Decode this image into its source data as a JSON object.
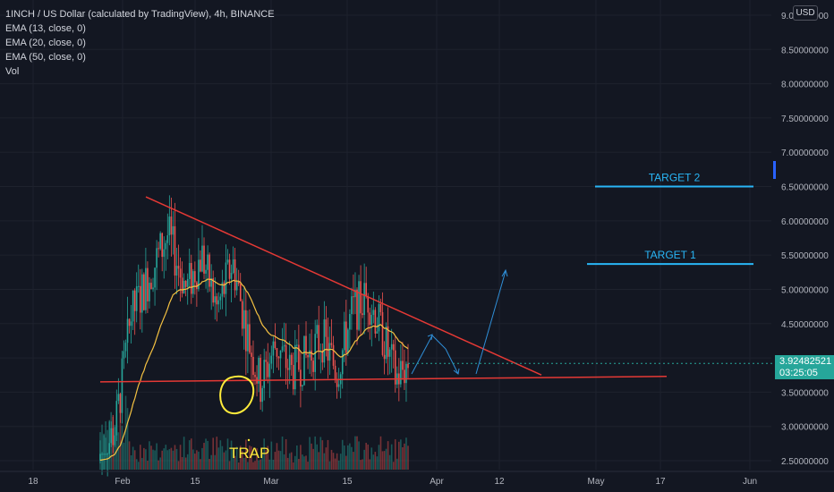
{
  "header": {
    "symbol_line": "1INCH / US Dollar (calculated by TradingView), 4h, BINANCE",
    "indicators": [
      "EMA (13, close, 0)",
      "EMA (20, close, 0)",
      "EMA (50, close, 0)",
      "Vol"
    ]
  },
  "currency_button": "USD",
  "current_price": {
    "value": "3.92482521",
    "countdown": "03:25:05"
  },
  "colors": {
    "background": "#131722",
    "grid": "#1e222d",
    "up_candle": "#26a69a",
    "down_candle": "#ef5350",
    "ema": "#f5c242",
    "trendline": "#e53935",
    "target": "#29b6f6",
    "arrow": "#2f8fd8",
    "annotation": "#ffeb3b"
  },
  "chart_data": {
    "type": "candlestick",
    "title": "1INCH / US Dollar (calculated by TradingView), 4h, BINANCE",
    "y_axis": {
      "range": [
        2.4,
        9.1
      ],
      "ticks": [
        "2.50000000",
        "3.00000000",
        "3.50000000",
        "4.00000000",
        "4.50000000",
        "5.00000000",
        "5.50000000",
        "6.00000000",
        "6.50000000",
        "7.00000000",
        "7.50000000",
        "8.00000000",
        "8.50000000",
        "9.00000000"
      ]
    },
    "x_axis": {
      "ticks": [
        "18",
        "Feb",
        "15",
        "Mar",
        "15",
        "Apr",
        "12",
        "May",
        "17",
        "Jun"
      ]
    },
    "price_path": [
      {
        "t": 0.0,
        "p": 2.5
      },
      {
        "t": 0.05,
        "p": 3.0
      },
      {
        "t": 0.1,
        "p": 4.6
      },
      {
        "t": 0.16,
        "p": 5.2
      },
      {
        "t": 0.22,
        "p": 5.8
      },
      {
        "t": 0.28,
        "p": 5.0
      },
      {
        "t": 0.33,
        "p": 5.5
      },
      {
        "t": 0.38,
        "p": 4.7
      },
      {
        "t": 0.43,
        "p": 5.4
      },
      {
        "t": 0.48,
        "p": 4.3
      },
      {
        "t": 0.52,
        "p": 3.6
      },
      {
        "t": 0.57,
        "p": 4.2
      },
      {
        "t": 0.62,
        "p": 3.8
      },
      {
        "t": 0.67,
        "p": 4.0
      },
      {
        "t": 0.72,
        "p": 4.3
      },
      {
        "t": 0.77,
        "p": 3.8
      },
      {
        "t": 0.82,
        "p": 4.7
      },
      {
        "t": 0.87,
        "p": 4.9
      },
      {
        "t": 0.92,
        "p": 4.3
      },
      {
        "t": 0.96,
        "p": 3.7
      },
      {
        "t": 1.0,
        "p": 3.92
      }
    ],
    "annotations": {
      "descending_resistance": {
        "from": {
          "date": "Feb 5",
          "price": 6.35
        },
        "to": {
          "date": "Apr 5",
          "price": 3.75
        }
      },
      "support": {
        "from": {
          "date": "Jan 20",
          "price": 3.65
        },
        "to": {
          "date": "May 12",
          "price": 3.73
        }
      },
      "targets": [
        {
          "label": "TARGET 2",
          "price": 6.5
        },
        {
          "label": "TARGET 1",
          "price": 5.37
        }
      ],
      "trap_label": "TRAP"
    }
  }
}
